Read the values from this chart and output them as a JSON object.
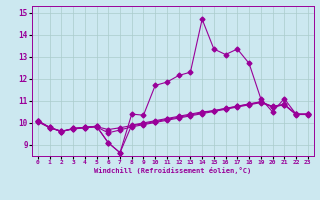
{
  "xlabel": "Windchill (Refroidissement éolien,°C)",
  "bg_color": "#cce8f0",
  "line_color": "#990099",
  "grid_color": "#aacccc",
  "xlim": [
    -0.5,
    23.5
  ],
  "ylim": [
    8.5,
    15.3
  ],
  "yticks": [
    9,
    10,
    11,
    12,
    13,
    14,
    15
  ],
  "xticks": [
    0,
    1,
    2,
    3,
    4,
    5,
    6,
    7,
    8,
    9,
    10,
    11,
    12,
    13,
    14,
    15,
    16,
    17,
    18,
    19,
    20,
    21,
    22,
    23
  ],
  "line1_x": [
    0,
    1,
    2,
    3,
    4,
    5,
    6,
    7,
    8,
    9,
    10,
    11,
    12,
    13,
    14,
    15,
    16,
    17,
    18,
    19,
    20,
    21,
    22,
    23
  ],
  "line1_y": [
    10.1,
    9.8,
    9.6,
    9.75,
    9.8,
    9.85,
    9.1,
    8.65,
    9.9,
    10.0,
    10.1,
    10.2,
    10.3,
    10.4,
    10.5,
    10.55,
    10.65,
    10.75,
    10.85,
    10.95,
    10.75,
    10.85,
    10.4,
    10.4
  ],
  "line2_x": [
    0,
    1,
    2,
    3,
    4,
    5,
    6,
    7,
    8,
    9,
    10,
    11,
    12,
    13,
    14,
    15,
    16,
    17,
    18,
    19,
    20,
    21,
    22,
    23
  ],
  "line2_y": [
    10.05,
    9.78,
    9.62,
    9.72,
    9.78,
    9.82,
    9.55,
    9.68,
    9.82,
    9.92,
    10.02,
    10.12,
    10.22,
    10.32,
    10.42,
    10.52,
    10.62,
    10.72,
    10.82,
    10.92,
    10.72,
    10.82,
    10.38,
    10.38
  ],
  "line3_x": [
    0,
    1,
    2,
    3,
    4,
    5,
    6,
    7,
    8,
    9,
    10,
    11,
    12,
    13,
    14,
    15,
    16,
    17,
    18,
    19,
    20,
    21,
    22,
    23
  ],
  "line3_y": [
    10.08,
    9.79,
    9.63,
    9.73,
    9.79,
    9.83,
    9.7,
    9.78,
    9.88,
    9.96,
    10.06,
    10.16,
    10.26,
    10.36,
    10.46,
    10.56,
    10.66,
    10.76,
    10.86,
    10.96,
    10.73,
    10.83,
    10.39,
    10.39
  ],
  "curve_x": [
    0,
    1,
    2,
    3,
    4,
    5,
    6,
    7,
    8,
    9,
    10,
    11,
    12,
    13,
    14,
    15,
    16,
    17,
    18,
    19,
    20,
    21,
    22,
    23
  ],
  "curve_y": [
    10.1,
    9.8,
    9.6,
    9.75,
    9.8,
    9.85,
    9.1,
    8.65,
    10.4,
    10.35,
    11.7,
    11.85,
    12.15,
    12.3,
    14.7,
    13.35,
    13.1,
    13.35,
    12.7,
    11.1,
    10.5,
    11.1,
    10.4,
    10.4
  ]
}
